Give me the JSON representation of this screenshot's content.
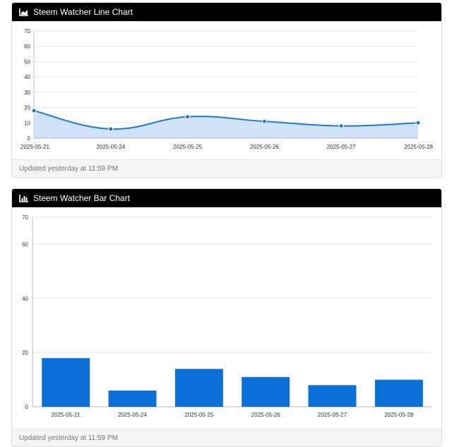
{
  "charts": [
    {
      "header_title": "Steem Watcher Line Chart",
      "header_icon": "area-chart-icon",
      "footer_text": "Updated yesterday at 11:59 PM"
    },
    {
      "header_title": "Steem Watcher Bar Chart",
      "header_icon": "bar-chart-icon",
      "footer_text": "Updated yesterday at 11:59 PM"
    }
  ],
  "colors": {
    "line": "#1f78d1",
    "area_fill": "#cfe2f7",
    "bar": "#0a6fd6",
    "grid": "#e6e6e6",
    "axis": "#bbbbbb",
    "tick_text": "#333333"
  },
  "chart_data": [
    {
      "type": "area",
      "title": "Steem Watcher Line Chart",
      "categories": [
        "2025-05-21",
        "2025-05-24",
        "2025-05-25",
        "2025-05-26",
        "2025-05-27",
        "2025-05-28"
      ],
      "values": [
        18,
        6,
        14,
        11,
        8,
        10
      ],
      "ylim": [
        0,
        70
      ],
      "yticks": [
        0,
        10,
        20,
        30,
        40,
        50,
        60,
        70
      ],
      "grid": true,
      "smooth": true,
      "markers": true
    },
    {
      "type": "bar",
      "title": "Steem Watcher Bar Chart",
      "categories": [
        "2025-05-21",
        "2025-05-24",
        "2025-05-25",
        "2025-05-26",
        "2025-05-27",
        "2025-05-28"
      ],
      "values": [
        18,
        6,
        14,
        11,
        8,
        10
      ],
      "ylim": [
        0,
        70
      ],
      "yticks": [
        0,
        20,
        40,
        60,
        70
      ],
      "grid": true
    }
  ]
}
